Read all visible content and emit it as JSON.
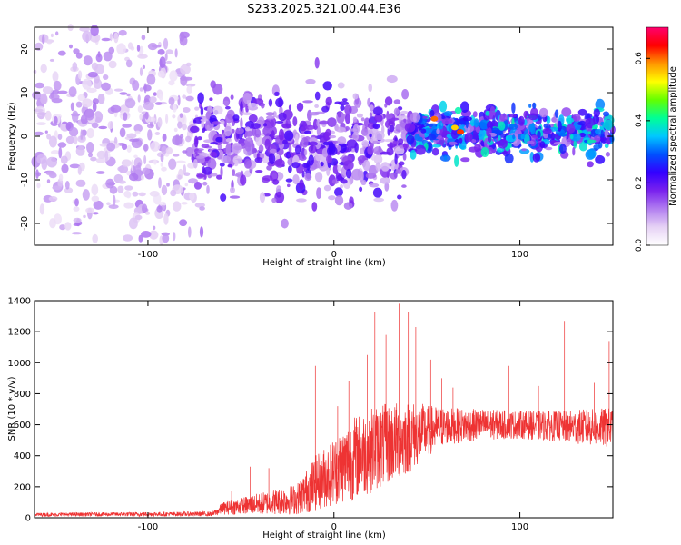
{
  "title": "S233.2025.321.00.44.E36",
  "chart_data": [
    {
      "type": "heatmap",
      "xlabel": "Height of straight line (km)",
      "ylabel": "Frequency (Hz)",
      "xlim": [
        -161,
        150
      ],
      "ylim": [
        -25,
        25
      ],
      "x_ticks": [
        -100,
        0,
        100
      ],
      "y_ticks": [
        -20,
        -10,
        0,
        10,
        20
      ],
      "colorbar": {
        "label": "Normalized spectral amplitude",
        "range": [
          0,
          0.7
        ],
        "ticks": [
          0.0,
          0.2,
          0.4,
          0.6
        ],
        "colors": [
          "#ffffff",
          "#e6d2f5",
          "#b27ef0",
          "#7a22ee",
          "#3300ff",
          "#0050ff",
          "#00c8ff",
          "#00ff96",
          "#64ff00",
          "#ffff00",
          "#ff9600",
          "#ff0000",
          "#ff006e"
        ]
      },
      "regions": [
        {
          "x": [
            -161,
            -75
          ],
          "freq_center": 0,
          "freq_spread": 25,
          "amplitude": 0.1
        },
        {
          "x": [
            -75,
            40
          ],
          "freq_center": -2,
          "freq_spread": 10,
          "amplitude": 0.18
        },
        {
          "x": [
            40,
            150
          ],
          "freq_center": 1,
          "freq_spread": 4,
          "amplitude": 0.32
        }
      ],
      "peaks": [
        {
          "x": 54,
          "freq": 4,
          "amplitude": 0.6
        },
        {
          "x": 68,
          "freq": 1,
          "amplitude": 0.62
        },
        {
          "x": 65,
          "freq": 2,
          "amplitude": 0.55
        }
      ]
    },
    {
      "type": "line",
      "xlabel": "Height of straight line (km)",
      "ylabel": "SNR (10 * v/v)",
      "xlim": [
        -161,
        150
      ],
      "ylim": [
        0,
        1400
      ],
      "x_ticks": [
        -100,
        0,
        100
      ],
      "y_ticks": [
        0,
        200,
        400,
        600,
        800,
        1000,
        1200,
        1400
      ],
      "color": "#ee3333",
      "envelope": {
        "x": [
          -161,
          -65,
          -60,
          -40,
          -20,
          -10,
          0,
          10,
          20,
          30,
          40,
          50,
          60,
          80,
          100,
          120,
          150
        ],
        "mean": [
          20,
          25,
          60,
          90,
          120,
          220,
          300,
          380,
          440,
          480,
          520,
          560,
          590,
          600,
          600,
          590,
          580
        ],
        "spread": [
          12,
          15,
          40,
          70,
          100,
          180,
          220,
          270,
          280,
          260,
          240,
          170,
          120,
          100,
          90,
          100,
          130
        ]
      },
      "spikes": [
        {
          "x": -55,
          "y": 170
        },
        {
          "x": -45,
          "y": 330
        },
        {
          "x": -35,
          "y": 320
        },
        {
          "x": -10,
          "y": 980
        },
        {
          "x": 2,
          "y": 720
        },
        {
          "x": 8,
          "y": 880
        },
        {
          "x": 18,
          "y": 1050
        },
        {
          "x": 22,
          "y": 1330
        },
        {
          "x": 28,
          "y": 1180
        },
        {
          "x": 35,
          "y": 1380
        },
        {
          "x": 40,
          "y": 1330
        },
        {
          "x": 44,
          "y": 1230
        },
        {
          "x": 52,
          "y": 1020
        },
        {
          "x": 58,
          "y": 900
        },
        {
          "x": 64,
          "y": 840
        },
        {
          "x": 78,
          "y": 950
        },
        {
          "x": 94,
          "y": 980
        },
        {
          "x": 110,
          "y": 850
        },
        {
          "x": 124,
          "y": 1270
        },
        {
          "x": 140,
          "y": 870
        },
        {
          "x": 148,
          "y": 1140
        }
      ]
    }
  ]
}
